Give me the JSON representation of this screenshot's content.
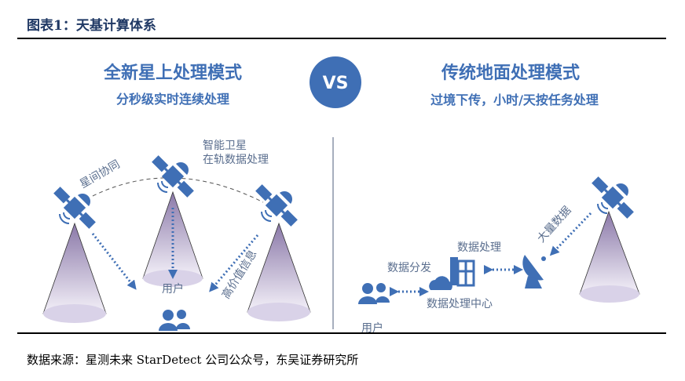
{
  "caption": "图表1：天基计算体系",
  "source": "数据来源：星测未来 StarDetect 公司公众号，东吴证券研究所",
  "colors": {
    "accent": "#3f6fb5",
    "caption": "#1f3864",
    "cone": "#c9bfdc"
  },
  "left": {
    "title": "全新星上处理模式",
    "subtitle": "分秒级实时连续处理",
    "label_smart": "智能卫星",
    "label_onorbit": "在轨数据处理",
    "label_coop": "星间协同",
    "label_user": "用户",
    "label_highvalue": "高价值信息"
  },
  "vs": "VS",
  "right": {
    "title": "传统地面处理模式",
    "subtitle": "过境下传，小时/天按任务处理",
    "label_bigdata": "大量数据",
    "label_processing": "数据处理",
    "label_distribution": "数据分发",
    "label_center": "数据处理中心",
    "label_user": "用户"
  }
}
